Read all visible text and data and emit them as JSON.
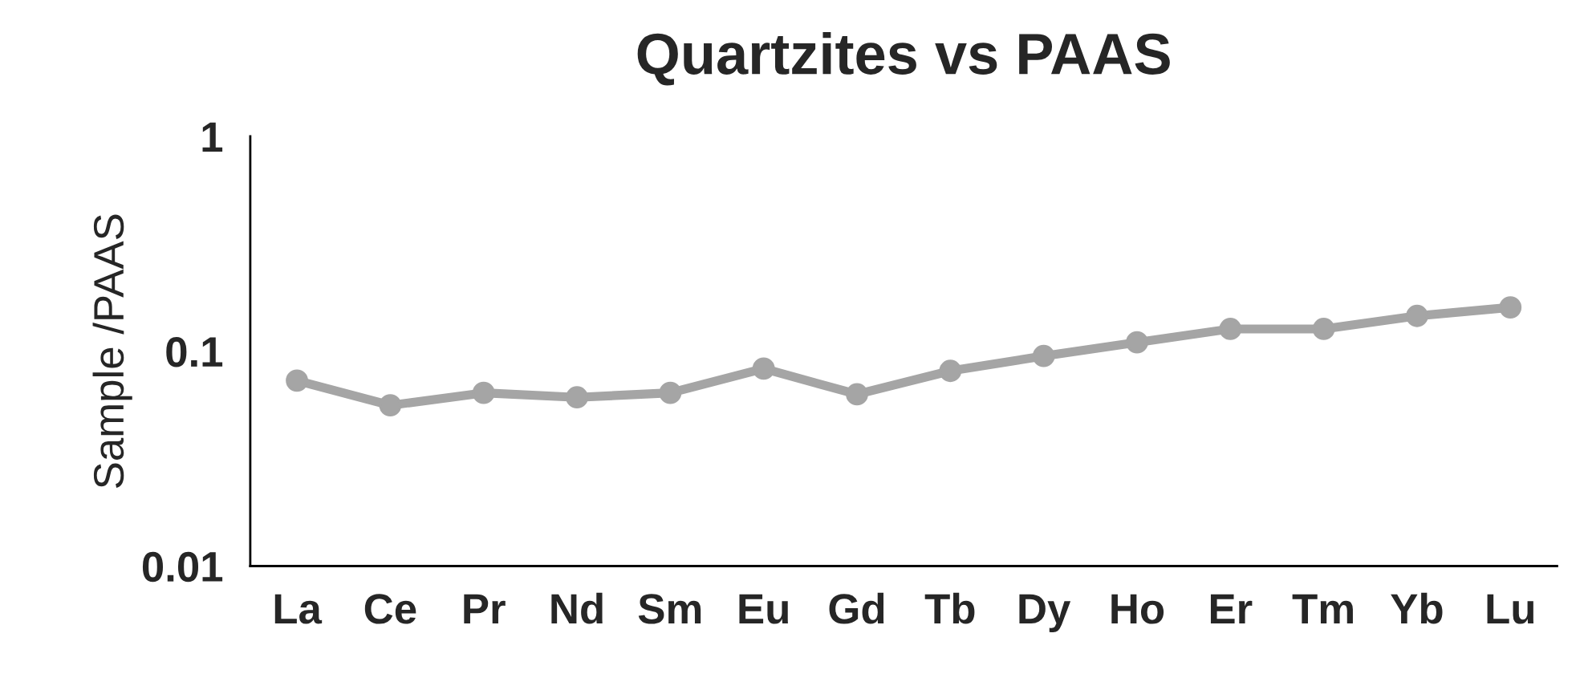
{
  "chart_data": {
    "type": "line",
    "title": "Quartzites vs PAAS",
    "ylabel": "Sample /PAAS",
    "categories": [
      "La",
      "Ce",
      "Pr",
      "Nd",
      "Sm",
      "Eu",
      "Gd",
      "Tb",
      "Dy",
      "Ho",
      "Er",
      "Tm",
      "Yb",
      "Lu"
    ],
    "series": [
      {
        "color": "#a5a5a5",
        "values": [
          0.073,
          0.056,
          0.064,
          0.061,
          0.064,
          0.083,
          0.063,
          0.081,
          0.095,
          0.11,
          0.127,
          0.127,
          0.146,
          0.16
        ]
      }
    ],
    "log": "y",
    "ylim": [
      0.01,
      1
    ],
    "yticks": [
      0.01,
      0.1,
      1
    ],
    "grid": false,
    "legend": false,
    "marker": "circle",
    "line_style": "solid"
  }
}
